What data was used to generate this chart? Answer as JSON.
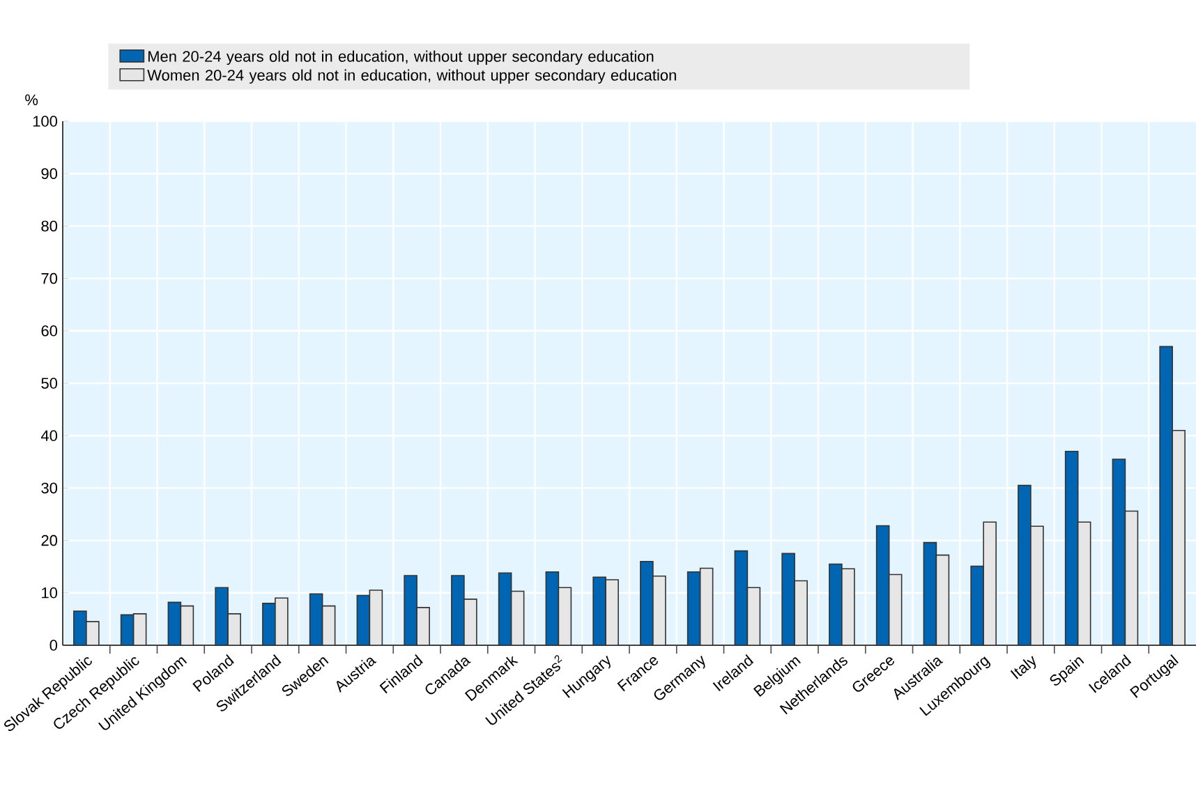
{
  "chart_data": {
    "type": "bar",
    "ylabel": "%",
    "categories": [
      "Slovak Republic",
      "Czech Republic",
      "United Kingdom",
      "Poland",
      "Switzerland",
      "Sweden",
      "Austria",
      "Finland",
      "Canada",
      "Denmark",
      "United States$^{2}$",
      "Hungary",
      "France",
      "Germany",
      "Ireland",
      "Belgium",
      "Netherlands",
      "Greece",
      "Australia",
      "Luxembourg",
      "Italy",
      "Spain",
      "Iceland",
      "Portugal"
    ],
    "series": [
      {
        "name": "Men 20-24 years old not in education, without upper secondary education",
        "color": "#0066b3",
        "values": [
          6.5,
          5.8,
          8.2,
          11,
          8,
          9.8,
          9.5,
          13.3,
          13.3,
          13.8,
          14,
          13,
          16,
          14,
          18,
          17.5,
          15.5,
          22.8,
          19.6,
          15.1,
          30.5,
          37,
          35.5,
          57
        ]
      },
      {
        "name": "Women 20-24 years old not in education, without upper secondary education",
        "color": "#e6e6e6",
        "values": [
          4.5,
          6,
          7.5,
          6,
          9,
          7.5,
          10.5,
          7.2,
          8.8,
          10.3,
          11,
          12.5,
          13.2,
          14.7,
          11,
          12.3,
          14.6,
          13.5,
          17.2,
          23.5,
          22.7,
          23.5,
          25.6,
          41
        ]
      }
    ],
    "ylim": [
      0,
      100
    ],
    "yticks": [
      0,
      10,
      20,
      30,
      40,
      50,
      60,
      70,
      80,
      90,
      100
    ],
    "grid": true,
    "legend": "top"
  }
}
